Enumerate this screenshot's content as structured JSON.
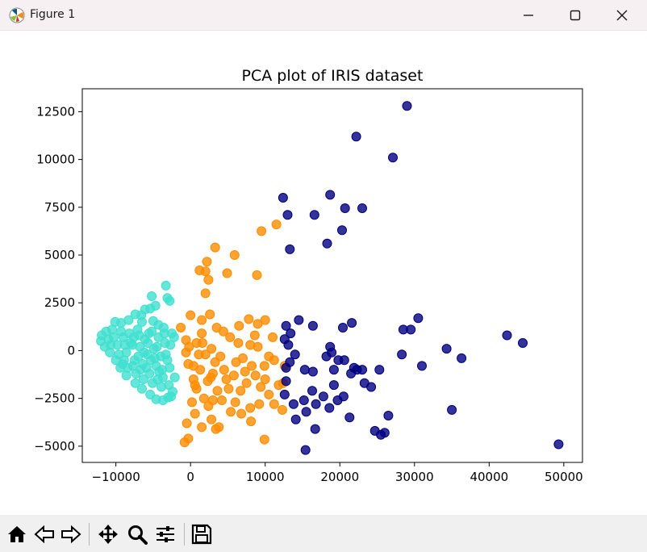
{
  "window": {
    "title": "Figure 1",
    "icons": {
      "app": "matplotlib-icon",
      "minimize": "minimize-icon",
      "maximize": "maximize-icon",
      "close": "close-icon"
    }
  },
  "toolbar": {
    "tools": [
      "home-icon",
      "back-arrow-icon",
      "forward-arrow-icon",
      "pan-icon",
      "zoom-icon",
      "configure-subplots-icon",
      "save-icon"
    ]
  },
  "chart_data": {
    "type": "scatter",
    "title": "PCA plot of IRIS dataset",
    "xlabel": "",
    "ylabel": "",
    "xlim": [
      -14500,
      52500
    ],
    "ylim": [
      -5850,
      13700
    ],
    "xticks": [
      -10000,
      0,
      10000,
      20000,
      30000,
      40000,
      50000
    ],
    "xtick_labels": [
      "−10000",
      "0",
      "10000",
      "20000",
      "30000",
      "40000",
      "50000"
    ],
    "yticks": [
      -5000,
      -2500,
      0,
      2500,
      5000,
      7500,
      10000,
      12500
    ],
    "ytick_labels": [
      "−5000",
      "−2500",
      "0",
      "2500",
      "5000",
      "7500",
      "10000",
      "12500"
    ],
    "grid": false,
    "legend": false,
    "series": [
      {
        "color": "#40e0d0",
        "points": [
          [
            -3300,
            3400
          ],
          [
            -5200,
            2850
          ],
          [
            -3100,
            2750
          ],
          [
            -2800,
            2600
          ],
          [
            -4700,
            2350
          ],
          [
            -6100,
            2150
          ],
          [
            -5400,
            2200
          ],
          [
            -7400,
            1900
          ],
          [
            -6600,
            1850
          ],
          [
            -8300,
            1600
          ],
          [
            -9300,
            1450
          ],
          [
            -10100,
            1500
          ],
          [
            -6500,
            1500
          ],
          [
            -5000,
            1550
          ],
          [
            -4300,
            1350
          ],
          [
            -3600,
            1200
          ],
          [
            -2500,
            900
          ],
          [
            -2200,
            700
          ],
          [
            -11300,
            1000
          ],
          [
            -11900,
            800
          ],
          [
            -12000,
            500
          ],
          [
            -11500,
            200
          ],
          [
            -10800,
            -100
          ],
          [
            -10000,
            -500
          ],
          [
            -9400,
            -900
          ],
          [
            -8600,
            -1300
          ],
          [
            -7400,
            -1700
          ],
          [
            -6500,
            -2000
          ],
          [
            -5400,
            -2300
          ],
          [
            -4600,
            -2550
          ],
          [
            -3700,
            -2600
          ],
          [
            -2600,
            -2400
          ],
          [
            -2100,
            -1400
          ],
          [
            -2400,
            -2150
          ],
          [
            -3000,
            -2450
          ],
          [
            -10500,
            1100
          ],
          [
            -9800,
            300
          ],
          [
            -9000,
            700
          ],
          [
            -8600,
            -100
          ],
          [
            -8200,
            900
          ],
          [
            -7800,
            300
          ],
          [
            -7500,
            -500
          ],
          [
            -7100,
            1100
          ],
          [
            -6800,
            200
          ],
          [
            -6400,
            -700
          ],
          [
            -6100,
            600
          ],
          [
            -5800,
            -200
          ],
          [
            -5500,
            -1200
          ],
          [
            -5200,
            1000
          ],
          [
            -4900,
            100
          ],
          [
            -4600,
            -800
          ],
          [
            -4300,
            700
          ],
          [
            -4000,
            -300
          ],
          [
            -3700,
            -1400
          ],
          [
            -3400,
            400
          ],
          [
            -3100,
            -500
          ],
          [
            -2900,
            -1800
          ],
          [
            -2700,
            300
          ],
          [
            -9300,
            1000
          ],
          [
            -8900,
            -500
          ],
          [
            -8000,
            400
          ],
          [
            -7300,
            -1200
          ],
          [
            -6900,
            800
          ],
          [
            -6300,
            -1500
          ],
          [
            -5700,
            400
          ],
          [
            -5100,
            -1700
          ],
          [
            -4500,
            200
          ],
          [
            -3900,
            -1900
          ],
          [
            -3300,
            -200
          ],
          [
            -2800,
            -900
          ],
          [
            -10300,
            700
          ],
          [
            -9600,
            -200
          ],
          [
            -8800,
            300
          ],
          [
            -7600,
            700
          ],
          [
            -7000,
            -300
          ],
          [
            -6200,
            -100
          ],
          [
            -5600,
            900
          ],
          [
            -4800,
            -400
          ],
          [
            -4200,
            -1100
          ],
          [
            -3500,
            900
          ],
          [
            -11000,
            600
          ],
          [
            -10700,
            300
          ],
          [
            -9100,
            -700
          ],
          [
            -8400,
            -900
          ],
          [
            -7700,
            -800
          ],
          [
            -6700,
            -1000
          ],
          [
            -5900,
            -900
          ],
          [
            -5300,
            -500
          ],
          [
            -4400,
            -1500
          ],
          [
            -3800,
            -1000
          ]
        ]
      },
      {
        "color": "#ff8c00",
        "points": [
          [
            3300,
            5400
          ],
          [
            2200,
            4650
          ],
          [
            1200,
            4200
          ],
          [
            2000,
            4150
          ],
          [
            4900,
            4050
          ],
          [
            2400,
            3700
          ],
          [
            5900,
            5000
          ],
          [
            9500,
            6250
          ],
          [
            11500,
            6600
          ],
          [
            8900,
            3950
          ],
          [
            2000,
            3000
          ],
          [
            -1300,
            1200
          ],
          [
            -600,
            550
          ],
          [
            0,
            1850
          ],
          [
            1500,
            1600
          ],
          [
            2600,
            1900
          ],
          [
            1500,
            900
          ],
          [
            3500,
            1200
          ],
          [
            6500,
            1300
          ],
          [
            7800,
            1650
          ],
          [
            9000,
            1400
          ],
          [
            10000,
            1600
          ],
          [
            8600,
            800
          ],
          [
            11000,
            700
          ],
          [
            -600,
            -100
          ],
          [
            -300,
            -700
          ],
          [
            400,
            -1500
          ],
          [
            800,
            -2000
          ],
          [
            200,
            -2700
          ],
          [
            -500,
            -3800
          ],
          [
            600,
            -3300
          ],
          [
            1500,
            -4000
          ],
          [
            2800,
            -3600
          ],
          [
            3800,
            -4000
          ],
          [
            2400,
            -2900
          ],
          [
            4200,
            -2600
          ],
          [
            6000,
            -2700
          ],
          [
            6800,
            -3300
          ],
          [
            8000,
            -3000
          ],
          [
            9200,
            -2800
          ],
          [
            10500,
            -2300
          ],
          [
            11800,
            -1800
          ],
          [
            12600,
            -800
          ],
          [
            10500,
            -300
          ],
          [
            9000,
            200
          ],
          [
            8200,
            -800
          ],
          [
            7000,
            -400
          ],
          [
            5800,
            -1300
          ],
          [
            4500,
            -1000
          ],
          [
            3300,
            -600
          ],
          [
            2000,
            -200
          ],
          [
            800,
            400
          ],
          [
            1300,
            -1000
          ],
          [
            2300,
            -1600
          ],
          [
            3600,
            -2100
          ],
          [
            5100,
            -2000
          ],
          [
            7500,
            -1700
          ],
          [
            8700,
            -1300
          ],
          [
            9900,
            -800
          ],
          [
            6400,
            400
          ],
          [
            5300,
            700
          ],
          [
            2800,
            100
          ],
          [
            1600,
            400
          ],
          [
            400,
            -800
          ],
          [
            3000,
            -1200
          ],
          [
            4000,
            -300
          ],
          [
            6100,
            -600
          ],
          [
            7300,
            -1100
          ],
          [
            8000,
            300
          ],
          [
            10000,
            -1500
          ],
          [
            11200,
            -500
          ],
          [
            12400,
            -1700
          ],
          [
            -300,
            -4600
          ],
          [
            -800,
            -4800
          ],
          [
            9900,
            -4650
          ],
          [
            3400,
            -4100
          ],
          [
            1800,
            -2500
          ],
          [
            4800,
            -1500
          ],
          [
            6700,
            -2100
          ],
          [
            9400,
            -1900
          ],
          [
            11200,
            -2800
          ],
          [
            12300,
            -3100
          ],
          [
            8100,
            -3700
          ],
          [
            5400,
            -3200
          ],
          [
            2700,
            -1400
          ],
          [
            1100,
            -200
          ],
          [
            600,
            -1800
          ],
          [
            -200,
            200
          ],
          [
            4400,
            1000
          ],
          [
            3000,
            -2600
          ]
        ]
      },
      {
        "color": "#000080",
        "points": [
          [
            29000,
            12800
          ],
          [
            22200,
            11200
          ],
          [
            27100,
            10100
          ],
          [
            12400,
            8000
          ],
          [
            13000,
            7100
          ],
          [
            16600,
            7100
          ],
          [
            18700,
            8150
          ],
          [
            20700,
            7450
          ],
          [
            23000,
            7450
          ],
          [
            13300,
            5300
          ],
          [
            18300,
            5600
          ],
          [
            20300,
            6300
          ],
          [
            14500,
            1600
          ],
          [
            12800,
            1300
          ],
          [
            13400,
            900
          ],
          [
            16400,
            1300
          ],
          [
            20400,
            1200
          ],
          [
            21600,
            1450
          ],
          [
            12600,
            600
          ],
          [
            13100,
            300
          ],
          [
            14000,
            -200
          ],
          [
            13300,
            -600
          ],
          [
            12800,
            -900
          ],
          [
            12800,
            -1600
          ],
          [
            12600,
            -2300
          ],
          [
            13800,
            -2800
          ],
          [
            15200,
            -2600
          ],
          [
            15500,
            -3200
          ],
          [
            16300,
            -2100
          ],
          [
            16800,
            -2800
          ],
          [
            17800,
            -2400
          ],
          [
            18600,
            -3000
          ],
          [
            19200,
            -1800
          ],
          [
            19700,
            -2600
          ],
          [
            20500,
            -2400
          ],
          [
            21500,
            -1200
          ],
          [
            21900,
            -900
          ],
          [
            22300,
            -1000
          ],
          [
            23000,
            -1000
          ],
          [
            23300,
            -1700
          ],
          [
            24200,
            -1900
          ],
          [
            18200,
            -300
          ],
          [
            18900,
            -100
          ],
          [
            19800,
            -500
          ],
          [
            20600,
            -500
          ],
          [
            16400,
            -1100
          ],
          [
            15300,
            -1000
          ],
          [
            14100,
            -3600
          ],
          [
            15400,
            -5200
          ],
          [
            16700,
            -4100
          ],
          [
            21300,
            -3500
          ],
          [
            24700,
            -4200
          ],
          [
            25500,
            -4400
          ],
          [
            26000,
            -4300
          ],
          [
            26500,
            -3400
          ],
          [
            25300,
            -1000
          ],
          [
            28500,
            1100
          ],
          [
            29500,
            1100
          ],
          [
            30500,
            1700
          ],
          [
            28300,
            -200
          ],
          [
            31000,
            -800
          ],
          [
            34300,
            100
          ],
          [
            36300,
            -400
          ],
          [
            35000,
            -3100
          ],
          [
            42400,
            800
          ],
          [
            44500,
            400
          ],
          [
            49300,
            -4900
          ],
          [
            18700,
            200
          ],
          [
            19200,
            -1000
          ]
        ]
      }
    ]
  }
}
